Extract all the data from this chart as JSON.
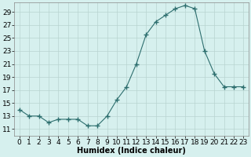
{
  "x": [
    0,
    1,
    2,
    3,
    4,
    5,
    6,
    7,
    8,
    9,
    10,
    11,
    12,
    13,
    14,
    15,
    16,
    17,
    18,
    19,
    20,
    21,
    22,
    23
  ],
  "y": [
    14,
    13,
    13,
    12,
    12.5,
    12.5,
    12.5,
    11.5,
    11.5,
    13,
    15.5,
    17.5,
    21,
    25.5,
    27.5,
    28.5,
    29.5,
    30,
    29.5,
    23,
    19.5,
    17.5,
    17.5,
    17.5
  ],
  "line_color": "#2d6e6e",
  "marker": "+",
  "marker_size": 4,
  "bg_color": "#d6f0ee",
  "grid_color": "#b8d4d0",
  "xlabel": "Humidex (Indice chaleur)",
  "xlim": [
    -0.5,
    23.5
  ],
  "ylim": [
    10,
    30.5
  ],
  "yticks": [
    11,
    13,
    15,
    17,
    19,
    21,
    23,
    25,
    27,
    29
  ],
  "xticks": [
    0,
    1,
    2,
    3,
    4,
    5,
    6,
    7,
    8,
    9,
    10,
    11,
    12,
    13,
    14,
    15,
    16,
    17,
    18,
    19,
    20,
    21,
    22,
    23
  ],
  "label_fontsize": 7,
  "tick_fontsize": 6.5
}
